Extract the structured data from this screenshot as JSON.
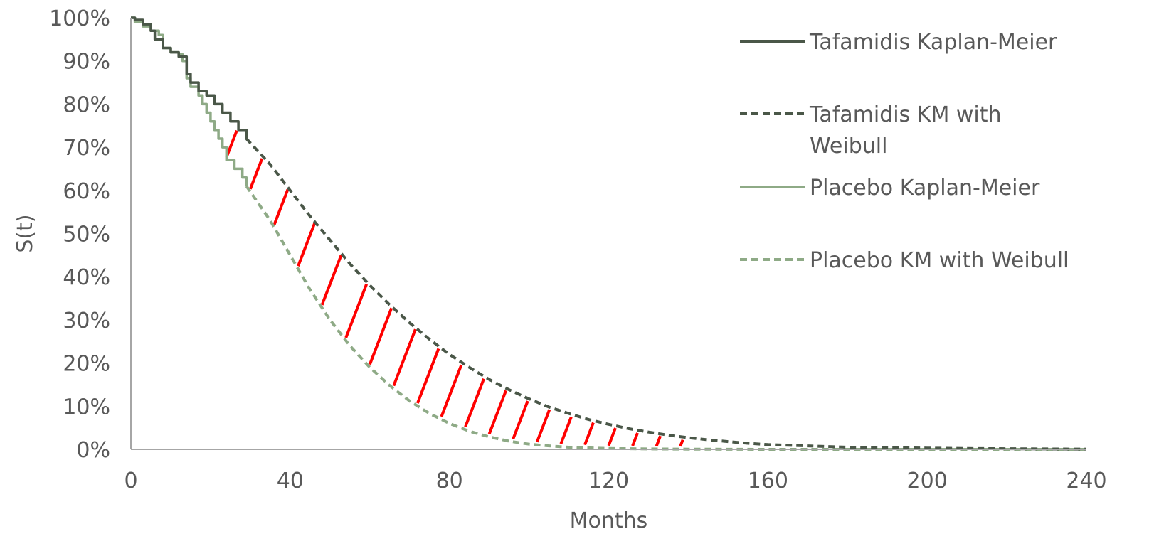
{
  "chart_data": {
    "type": "line",
    "title": "",
    "xlabel": "Months",
    "ylabel": "S(t)",
    "xlim": [
      0,
      240
    ],
    "ylim": [
      0,
      100
    ],
    "x_ticks": [
      "0",
      "40",
      "80",
      "120",
      "160",
      "200",
      "240"
    ],
    "y_ticks": [
      "0%",
      "10%",
      "20%",
      "30%",
      "40%",
      "50%",
      "60%",
      "70%",
      "80%",
      "90%",
      "100%"
    ],
    "grid": false,
    "legend_position": "top-right",
    "colors": {
      "tafamidis": "#4a5748",
      "placebo": "#8eaa86",
      "hatch": "#ff0000",
      "axis": "#a6a6a6",
      "text": "#595959"
    },
    "legend": [
      {
        "label_lines": [
          "Tafamidis Kaplan-Meier"
        ],
        "series": "tafamidis_km",
        "style": "solid",
        "color": "#4a5748"
      },
      {
        "label_lines": [
          "Tafamidis KM with",
          "Weibull"
        ],
        "series": "tafamidis_weibull",
        "style": "dashed",
        "color": "#4a5748"
      },
      {
        "label_lines": [
          "Placebo Kaplan-Meier"
        ],
        "series": "placebo_km",
        "style": "solid",
        "color": "#8eaa86"
      },
      {
        "label_lines": [
          "Placebo KM with Weibull"
        ],
        "series": "placebo_weibull",
        "style": "dashed",
        "color": "#8eaa86"
      }
    ],
    "series": [
      {
        "key": "tafamidis_km",
        "style": "solid",
        "step": true,
        "color": "#4a5748",
        "points": [
          [
            0,
            100
          ],
          [
            1,
            99.5
          ],
          [
            3,
            98.5
          ],
          [
            5,
            97
          ],
          [
            6,
            95
          ],
          [
            8,
            93
          ],
          [
            10,
            92
          ],
          [
            12,
            91
          ],
          [
            14,
            87
          ],
          [
            15,
            85
          ],
          [
            17,
            83
          ],
          [
            19,
            82
          ],
          [
            21,
            80
          ],
          [
            23,
            78
          ],
          [
            25,
            76
          ],
          [
            27,
            74
          ],
          [
            29,
            72
          ]
        ]
      },
      {
        "key": "tafamidis_weibull",
        "style": "dashed",
        "color": "#4a5748",
        "points": [
          [
            29,
            72
          ],
          [
            35,
            66
          ],
          [
            40,
            60
          ],
          [
            45,
            54
          ],
          [
            50,
            48.5
          ],
          [
            55,
            43
          ],
          [
            60,
            38
          ],
          [
            65,
            33.5
          ],
          [
            70,
            29.3
          ],
          [
            75,
            25.5
          ],
          [
            80,
            22
          ],
          [
            85,
            19
          ],
          [
            90,
            16.2
          ],
          [
            95,
            13.8
          ],
          [
            100,
            11.7
          ],
          [
            105,
            9.8
          ],
          [
            110,
            8.3
          ],
          [
            115,
            6.9
          ],
          [
            120,
            5.8
          ],
          [
            125,
            4.8
          ],
          [
            130,
            4
          ],
          [
            135,
            3.3
          ],
          [
            140,
            2.7
          ],
          [
            145,
            2.2
          ],
          [
            150,
            1.8
          ],
          [
            155,
            1.4
          ],
          [
            160,
            1.1
          ],
          [
            170,
            0.8
          ],
          [
            180,
            0.5
          ],
          [
            190,
            0.4
          ],
          [
            200,
            0.3
          ],
          [
            210,
            0.2
          ],
          [
            220,
            0.15
          ],
          [
            230,
            0.1
          ],
          [
            240,
            0.05
          ]
        ]
      },
      {
        "key": "placebo_km",
        "style": "solid",
        "step": true,
        "color": "#8eaa86",
        "points": [
          [
            0,
            100
          ],
          [
            1,
            99
          ],
          [
            3,
            98
          ],
          [
            5,
            97
          ],
          [
            7,
            96
          ],
          [
            8,
            93
          ],
          [
            10,
            92
          ],
          [
            12,
            91.5
          ],
          [
            13,
            90
          ],
          [
            14,
            86
          ],
          [
            15,
            84
          ],
          [
            17,
            82
          ],
          [
            18,
            80
          ],
          [
            19,
            78
          ],
          [
            20,
            76
          ],
          [
            21,
            74
          ],
          [
            22,
            72
          ],
          [
            23,
            70
          ],
          [
            24,
            67
          ],
          [
            26,
            65
          ],
          [
            28,
            63
          ],
          [
            29,
            61
          ]
        ]
      },
      {
        "key": "placebo_weibull",
        "style": "dashed",
        "color": "#8eaa86",
        "points": [
          [
            29,
            61
          ],
          [
            35,
            53
          ],
          [
            40,
            45
          ],
          [
            45,
            37
          ],
          [
            50,
            30
          ],
          [
            55,
            24
          ],
          [
            60,
            19
          ],
          [
            65,
            14.8
          ],
          [
            70,
            11.2
          ],
          [
            75,
            8.3
          ],
          [
            80,
            6
          ],
          [
            85,
            4.2
          ],
          [
            90,
            2.9
          ],
          [
            95,
            1.9
          ],
          [
            100,
            1.2
          ],
          [
            105,
            0.8
          ],
          [
            110,
            0.5
          ],
          [
            120,
            0.2
          ],
          [
            130,
            0.1
          ],
          [
            140,
            0.05
          ],
          [
            160,
            0
          ],
          [
            200,
            0
          ],
          [
            240,
            0
          ]
        ]
      }
    ],
    "hatch_region": {
      "between": [
        "placebo_weibull",
        "tafamidis_weibull"
      ],
      "x_range": [
        24,
        138
      ],
      "color": "#ff0000"
    }
  }
}
